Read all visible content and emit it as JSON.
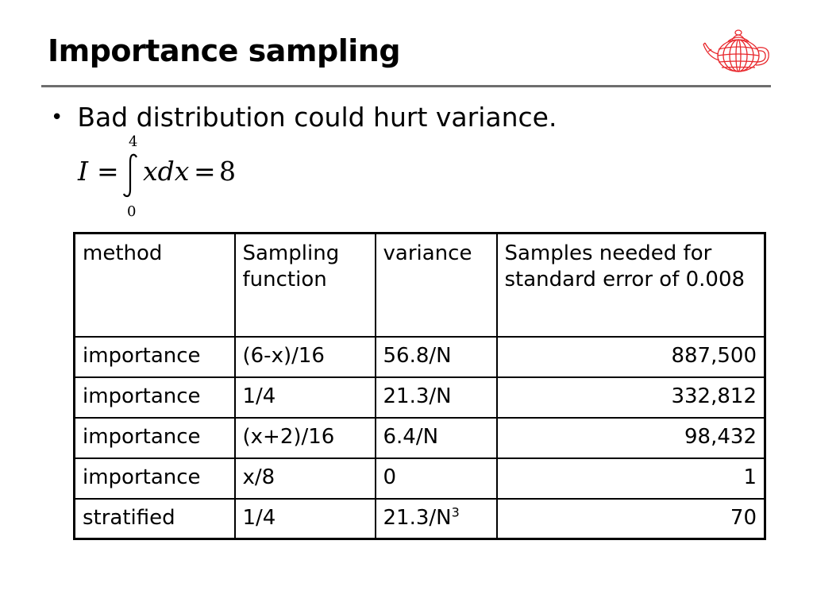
{
  "slide": {
    "title": "Importance sampling",
    "bullet": "Bad distribution could hurt variance.",
    "formula": {
      "lhs": "I",
      "equals": "=",
      "upper_limit": "4",
      "lower_limit": "0",
      "integrand": "xdx",
      "equals_2": "=",
      "result": "8"
    },
    "logo_icon": "teapot-wireframe-icon",
    "logo_color": "#e8262b",
    "rule_color": "#6e6e6e"
  },
  "table": {
    "headers": [
      "method",
      "Sampling function",
      "variance",
      "Samples needed for standard error of 0.008"
    ],
    "rows": [
      {
        "method": "importance",
        "sampling": "(6-x)/16",
        "variance": "56.8/N",
        "variance_exp": "",
        "samples": "887,500"
      },
      {
        "method": "importance",
        "sampling": "1/4",
        "variance": "21.3/N",
        "variance_exp": "",
        "samples": "332,812"
      },
      {
        "method": "importance",
        "sampling": "(x+2)/16",
        "variance": "6.4/N",
        "variance_exp": "",
        "samples": "98,432"
      },
      {
        "method": "importance",
        "sampling": "x/8",
        "variance": "0",
        "variance_exp": "",
        "samples": "1"
      },
      {
        "method": "stratified",
        "sampling": "1/4",
        "variance": "21.3/N",
        "variance_exp": "3",
        "samples": "70"
      }
    ]
  }
}
